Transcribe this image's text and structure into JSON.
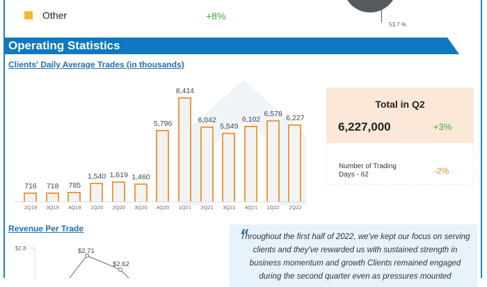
{
  "legend": {
    "label": "Other",
    "change": "+8%",
    "color": "#f4b830"
  },
  "pie": {
    "slice_label": "53.7 %"
  },
  "section": {
    "title": "Operating Statistics"
  },
  "trades": {
    "subtitle": "Clients' Daily Average Trades (in thousands)"
  },
  "total_card": {
    "title": "Total in Q2",
    "value": "6,227,000",
    "change": "+3%"
  },
  "days_card": {
    "label": "Number of Trading Days - 62",
    "change": "-2%"
  },
  "revenue": {
    "title": "Revenue Per Trade",
    "y_tick": "$2.8",
    "labels": [
      "$2.71",
      "$2.62"
    ]
  },
  "quote": {
    "mark": "“",
    "text": "Throughout the first half of 2022, we've kept our focus on serving clients and they've rewarded us with sustained strength in business momentum and growth Clients remained engaged during the second quarter even as pressures mounted"
  },
  "chart_data": [
    {
      "type": "bar",
      "title": "Clients' Daily Average Trades (in thousands)",
      "categories": [
        "2Q19",
        "3Q19",
        "4Q19",
        "1Q20",
        "2Q20",
        "3Q20",
        "4Q20",
        "1Q21",
        "2Q21",
        "3Q21",
        "4Q21",
        "1Q22",
        "2Q22"
      ],
      "values": [
        716,
        718,
        785,
        1540,
        1619,
        1460,
        5796,
        8414,
        6042,
        5549,
        6102,
        6578,
        6227
      ],
      "labels": [
        "716",
        "718",
        "785",
        "1,540",
        "1,619",
        "1,460",
        "5,796",
        "8,414",
        "6,042",
        "5,549",
        "6,102",
        "6,578",
        "6,227"
      ],
      "xlabel": "",
      "ylabel": "",
      "grid": false,
      "legend": "none"
    },
    {
      "type": "line",
      "title": "Revenue Per Trade",
      "points_visible": [
        {
          "label": "$2.71",
          "value": 2.71
        },
        {
          "label": "$2.62",
          "value": 2.62
        }
      ],
      "y_ticks": [
        "$2.8"
      ]
    }
  ]
}
